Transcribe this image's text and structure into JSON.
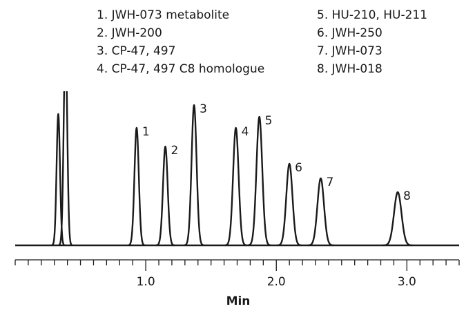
{
  "chart_data": {
    "type": "chromatogram",
    "legend": [
      "1. JWH-073 metabolite",
      "2. JWH-200",
      "3. CP-47, 497",
      "4. CP-47, 497 C8 homologue",
      "5. HU-210, HU-211",
      "6. JWH-250",
      "7. JWH-073",
      "8. JWH-018"
    ],
    "peaks": {
      "labels": [
        null,
        null,
        "1",
        "2",
        "3",
        "4",
        "5",
        "6",
        "7",
        "8"
      ],
      "x": [
        0.33,
        0.385,
        0.93,
        1.15,
        1.37,
        1.69,
        1.87,
        2.1,
        2.34,
        2.93
      ],
      "heights": [
        190,
        300,
        170,
        143,
        203,
        170,
        186,
        118,
        97,
        77
      ]
    },
    "color": "#1a1a1a",
    "xlabel": "Min",
    "xlim": [
      0,
      3.4
    ],
    "ylim": [
      0,
      223
    ],
    "xticks": [
      {
        "value": 1,
        "label": "1.0"
      },
      {
        "value": 2,
        "label": "2.0"
      },
      {
        "value": 3,
        "label": "3.0"
      }
    ],
    "xminorticks": [
      0,
      0.1,
      0.2,
      0.3,
      0.4,
      0.5,
      0.6,
      0.7,
      0.8,
      0.9,
      1.1,
      1.2,
      1.3,
      1.4,
      1.5,
      1.6,
      1.7,
      1.8,
      1.9,
      2.1,
      2.2,
      2.3,
      2.4,
      2.5,
      2.6,
      2.7,
      2.8,
      2.9,
      3.1,
      3.2,
      3.3,
      3.4
    ]
  }
}
